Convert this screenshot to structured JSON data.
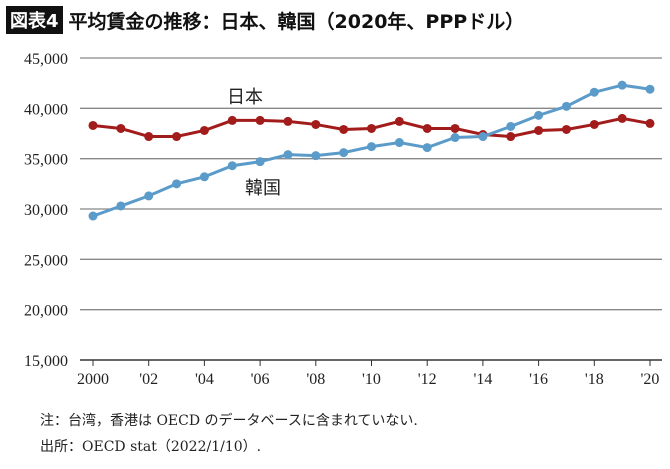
{
  "header": {
    "badge": "図表4",
    "title": "平均賃金の推移：日本、韓国（2020年、PPPドル）"
  },
  "chart_data": {
    "type": "line",
    "title": "平均賃金の推移：日本、韓国（2020年、PPPドル）",
    "x": [
      2000,
      2001,
      2002,
      2003,
      2004,
      2005,
      2006,
      2007,
      2008,
      2009,
      2010,
      2011,
      2012,
      2013,
      2014,
      2015,
      2016,
      2017,
      2018,
      2019,
      2020
    ],
    "xtick_labels": [
      "2000",
      "'02",
      "'04",
      "'06",
      "'08",
      "'10",
      "'12",
      "'14",
      "'16",
      "'18",
      "'20"
    ],
    "ytick_labels": [
      "15,000",
      "20,000",
      "25,000",
      "30,000",
      "35,000",
      "40,000",
      "45,000"
    ],
    "ylim": [
      15000,
      45000
    ],
    "grid": "horizontal",
    "series": [
      {
        "name": "日本",
        "color": "#a31c1c",
        "values": [
          38300,
          38000,
          37200,
          37200,
          37800,
          38800,
          38800,
          38700,
          38400,
          37900,
          38000,
          38700,
          38000,
          38000,
          37400,
          37200,
          37800,
          37900,
          38400,
          39000,
          38500
        ]
      },
      {
        "name": "韓国",
        "color": "#5b9bc9",
        "values": [
          29300,
          30300,
          31300,
          32500,
          33200,
          34300,
          34700,
          35400,
          35300,
          35600,
          36200,
          36600,
          36100,
          37100,
          37200,
          38200,
          39300,
          40200,
          41600,
          42300,
          41900
        ]
      }
    ]
  },
  "notes": [
    "注：台湾，香港は OECD のデータベースに含まれていない.",
    "出所：OECD stat（2022/1/10）."
  ]
}
